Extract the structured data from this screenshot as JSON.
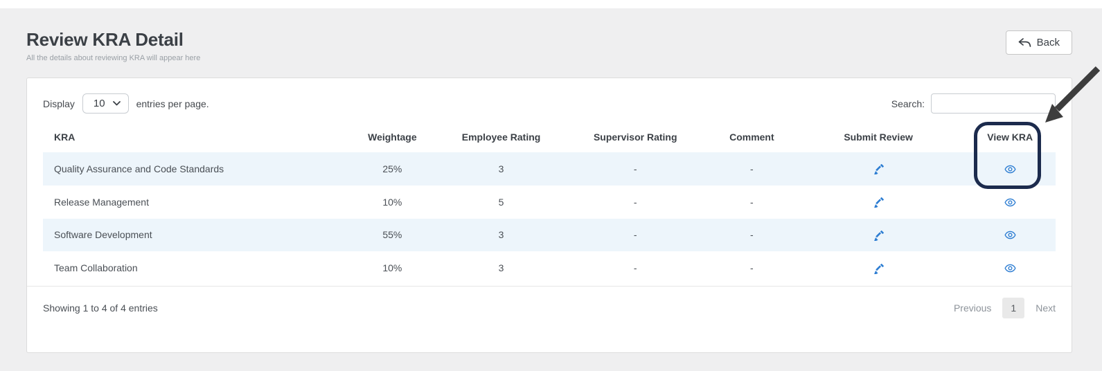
{
  "page": {
    "title": "Review KRA Detail",
    "subtitle": "All the details about reviewing KRA will appear here",
    "back_label": "Back"
  },
  "controls": {
    "display_label": "Display",
    "entries_select_value": "10",
    "entries_suffix": "entries per page.",
    "search_label": "Search:",
    "search_value": ""
  },
  "table": {
    "columns": [
      "KRA",
      "Weightage",
      "Employee Rating",
      "Supervisor Rating",
      "Comment",
      "Submit Review",
      "View KRA"
    ],
    "rows": [
      {
        "kra": "Quality Assurance and Code Standards",
        "weightage": "25%",
        "employee_rating": "3",
        "supervisor_rating": "-",
        "comment": "-"
      },
      {
        "kra": "Release Management",
        "weightage": "10%",
        "employee_rating": "5",
        "supervisor_rating": "-",
        "comment": "-"
      },
      {
        "kra": "Software Development",
        "weightage": "55%",
        "employee_rating": "3",
        "supervisor_rating": "-",
        "comment": "-"
      },
      {
        "kra": "Team Collaboration",
        "weightage": "10%",
        "employee_rating": "3",
        "supervisor_rating": "-",
        "comment": "-"
      }
    ],
    "row_icons": {
      "submit_review": "pencil-icon",
      "view_kra": "eye-icon"
    }
  },
  "footer": {
    "showing_text": "Showing 1 to 4 of 4 entries",
    "pagination": {
      "previous": "Previous",
      "current_page": "1",
      "next": "Next"
    }
  },
  "annotation": {
    "highlight_border_color": "#1c2b4d",
    "arrow_color": "#3d3d3d"
  },
  "colors": {
    "accent_blue": "#2d7dd2",
    "row_stripe": "#edf5fb",
    "background": "#efeff0"
  }
}
